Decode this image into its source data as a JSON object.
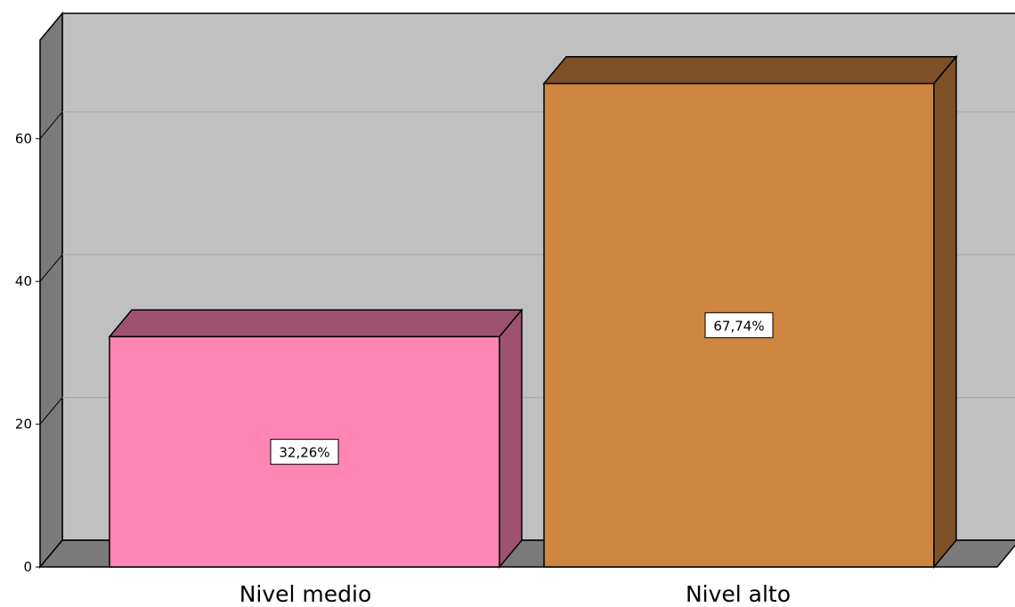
{
  "chart_data": {
    "type": "bar",
    "categories": [
      "Nivel medio",
      "Nivel alto"
    ],
    "values": [
      32.26,
      67.74
    ],
    "data_labels": [
      "32,26%",
      "67,74%"
    ],
    "title": "",
    "xlabel": "",
    "ylabel": "",
    "ylim": [
      0,
      70
    ],
    "yticks": [
      "0",
      "20",
      "40",
      "60"
    ],
    "grid": true,
    "three_d": true,
    "colors": {
      "bar_front": [
        "#FF85B4",
        "#CD853F"
      ],
      "bar_top": [
        "#9E5270",
        "#7D5027"
      ],
      "bar_side": [
        "#9E5270",
        "#7D5027"
      ],
      "wall": "#C0C0C0",
      "wall_side": "#7A7A7A",
      "floor": "#7A7A7A",
      "gridline": "#A8A8A8"
    }
  }
}
